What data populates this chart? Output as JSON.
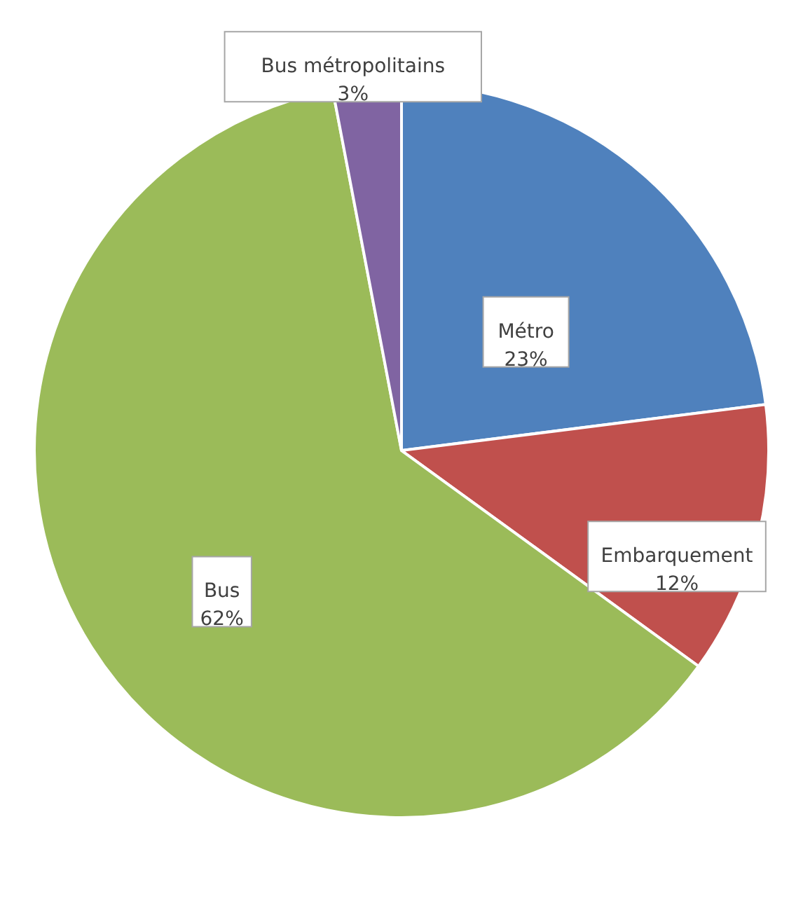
{
  "chart_data": {
    "type": "pie",
    "categories": [
      "Métro",
      "Embarquement",
      "Bus",
      "Bus métropolitains"
    ],
    "values": [
      23,
      12,
      62,
      3
    ],
    "value_labels": [
      "23%",
      "12%",
      "62%",
      "3%"
    ],
    "colors": [
      "#4f81bd",
      "#c0504d",
      "#9bbb59",
      "#8064a2"
    ]
  }
}
